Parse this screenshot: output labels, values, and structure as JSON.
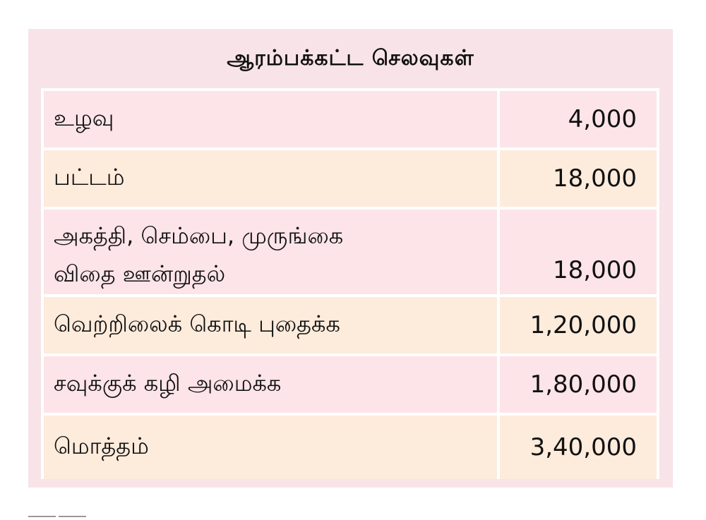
{
  "title": "ஆரம்பக்கட்ட செலவுகள்",
  "rows": [
    {
      "label": "உழவு",
      "value": "4,000"
    },
    {
      "label": "பட்டம்",
      "value": "18,000"
    },
    {
      "label": "அகத்தி, செம்பை, முருங்கை\nவிதை ஊன்றுதல்",
      "value": "18,000"
    },
    {
      "label": "வெற்றிலைக் கொடி புதைக்க",
      "value": "1,20,000"
    },
    {
      "label": "சவுக்குக் கழி அமைக்க",
      "value": "1,80,000"
    },
    {
      "label": "மொத்தம்",
      "value": "3,40,000"
    }
  ],
  "colors": {
    "card_bg": "#f7e3e8",
    "row_pink": "#fce4e8",
    "row_cream": "#fdebdc",
    "border": "#ffffff"
  }
}
